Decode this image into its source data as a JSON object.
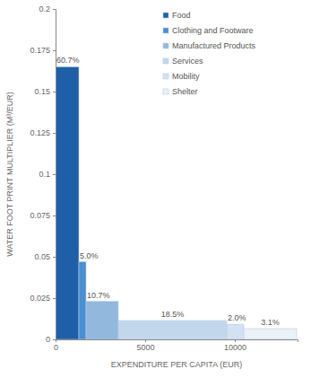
{
  "chart_data": {
    "type": "bar",
    "x_label": "EXPENDITURE PER CAPITA (EUR)",
    "y_label": "WATER FOOT PRINT MULTIPLIER (M³/EUR)",
    "categories": [
      "Food",
      "Clothing and Footware",
      "Manufactured Products",
      "Services",
      "Mobility",
      "Shelter"
    ],
    "bins": [
      0,
      1300,
      1700,
      3500,
      9550,
      10500,
      13450
    ],
    "values": [
      0.165,
      0.047,
      0.023,
      0.0114,
      0.0092,
      0.0065
    ],
    "colors": [
      "#1f5fa8",
      "#4a8fd0",
      "#93b8dd",
      "#c3d7ec",
      "#d3e2f2",
      "#eaf1f9"
    ],
    "shares": [
      60.7,
      5.0,
      10.7,
      18.5,
      2.0,
      3.1
    ],
    "share_labels": [
      "60.7%",
      "5.0%",
      "10.7%",
      "18.5%",
      "2.0%",
      "3.1%"
    ],
    "xlim": [
      0,
      13500
    ],
    "xticks": [
      0,
      5000,
      10000
    ],
    "ylim": [
      0,
      0.2
    ],
    "yticks": [
      0,
      0.025,
      0.05,
      0.075,
      0.1,
      0.125,
      0.15,
      0.175,
      0.2
    ],
    "legend": "upper right",
    "grid": false
  }
}
